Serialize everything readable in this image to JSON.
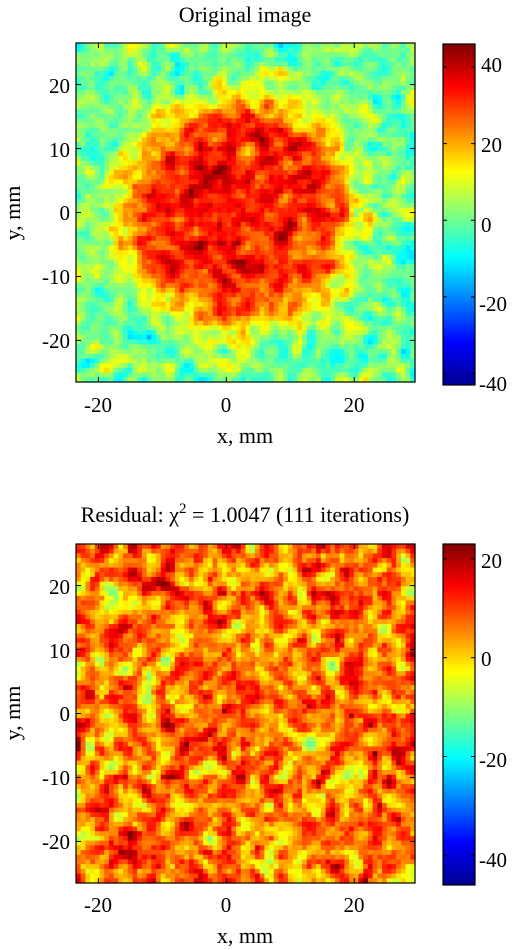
{
  "figure": {
    "panels": [
      {
        "title": "Original image",
        "xlabel": "x, mm",
        "ylabel": "y, mm",
        "colorbar_ticks": [
          "40",
          "20",
          "0",
          "-20",
          "-40"
        ]
      },
      {
        "title_prefix": "Residual: ",
        "title_chi": "χ",
        "title_sup": "2",
        "title_suffix": " = 1.0047 (111 iterations)",
        "xlabel": "x, mm",
        "ylabel": "y, mm",
        "colorbar_ticks": [
          "20",
          "0",
          "-20",
          "-40"
        ]
      }
    ],
    "x_ticks": [
      "-20",
      "0",
      "20"
    ],
    "y_ticks": [
      "20",
      "10",
      "0",
      "-10",
      "-20"
    ]
  },
  "chart_data": [
    {
      "type": "heatmap",
      "title": "Original image",
      "xlabel": "x, mm",
      "ylabel": "y, mm",
      "xlim": [
        -23.5,
        29.5
      ],
      "ylim": [
        -26.5,
        26.5
      ],
      "x_ticks": [
        -20,
        0,
        20
      ],
      "y_ticks": [
        -20,
        -10,
        0,
        10,
        20
      ],
      "clim": [
        -43,
        46
      ],
      "colorbar_ticks": [
        -40,
        -20,
        0,
        20,
        40
      ],
      "colormap": "jet",
      "structure": "noisy disk of high values (~30-40) centred near (2, 0) with radius ~18 mm on a noisy background near 0",
      "disk_center": [
        2,
        0
      ],
      "disk_radius": 18,
      "disk_level": 33,
      "background_level": 0,
      "noise_std": 8
    },
    {
      "type": "heatmap",
      "title": "Residual: χ2 = 1.0047 (111 iterations)",
      "xlabel": "x, mm",
      "ylabel": "y, mm",
      "xlim": [
        -23.5,
        29.5
      ],
      "ylim": [
        -26.5,
        26.5
      ],
      "x_ticks": [
        -20,
        0,
        20
      ],
      "y_ticks": [
        -20,
        -10,
        0,
        10,
        20
      ],
      "clim": [
        -46,
        23
      ],
      "colorbar_ticks": [
        -40,
        -20,
        0,
        20
      ],
      "colormap": "jet",
      "structure": "spatially uncorrelated noise, values mostly between -10 and 20",
      "mean_level": 6,
      "noise_std": 9
    }
  ]
}
